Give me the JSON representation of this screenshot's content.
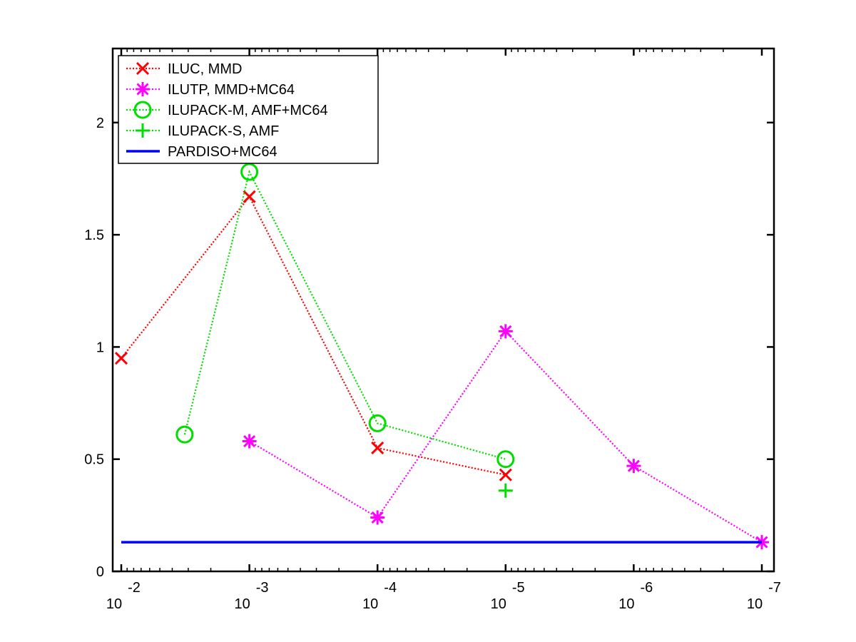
{
  "chart_data": {
    "type": "line",
    "xscale": "log",
    "xlim": [
      0.01,
      1e-07
    ],
    "ylim": [
      0,
      2.33
    ],
    "grid": false,
    "legend_position": "top-left",
    "xticks": [
      {
        "value": 0.01,
        "base": "10",
        "exp": "-2"
      },
      {
        "value": 0.001,
        "base": "10",
        "exp": "-3"
      },
      {
        "value": 0.0001,
        "base": "10",
        "exp": "-4"
      },
      {
        "value": 1e-05,
        "base": "10",
        "exp": "-5"
      },
      {
        "value": 1e-06,
        "base": "10",
        "exp": "-6"
      },
      {
        "value": 1e-07,
        "base": "10",
        "exp": "-7"
      }
    ],
    "yticks": [
      {
        "value": 0,
        "label": "0"
      },
      {
        "value": 0.5,
        "label": "0.5"
      },
      {
        "value": 1,
        "label": "1"
      },
      {
        "value": 1.5,
        "label": "1.5"
      },
      {
        "value": 2,
        "label": "2"
      }
    ],
    "series": [
      {
        "name": "ILUC, MMD",
        "color": "#ff0000",
        "marker": "x",
        "line": "dotted",
        "points": [
          [
            0.01,
            0.95
          ],
          [
            0.001,
            1.67
          ],
          [
            0.0001,
            0.55
          ],
          [
            1e-05,
            0.43
          ]
        ]
      },
      {
        "name": "ILUTP, MMD+MC64",
        "color": "#ff00ff",
        "marker": "star",
        "line": "dotted",
        "points": [
          [
            0.001,
            0.58
          ],
          [
            0.0001,
            0.24
          ],
          [
            1e-05,
            1.07
          ],
          [
            1e-06,
            0.47
          ],
          [
            1e-07,
            0.13
          ]
        ]
      },
      {
        "name": "ILUPACK-M, AMF+MC64",
        "color": "#00dd00",
        "marker": "circle",
        "line": "dotted",
        "points": [
          [
            0.0032,
            0.61
          ],
          [
            0.001,
            1.78
          ],
          [
            0.0001,
            0.66
          ],
          [
            1e-05,
            0.5
          ]
        ]
      },
      {
        "name": "ILUPACK-S, AMF",
        "color": "#00dd00",
        "marker": "plus",
        "line": "dotted",
        "points": [
          [
            1e-05,
            0.36
          ]
        ]
      },
      {
        "name": "PARDISO+MC64",
        "color": "#0000ff",
        "marker": "none",
        "line": "solid",
        "points": [
          [
            0.01,
            0.13
          ],
          [
            1e-07,
            0.13
          ]
        ]
      }
    ]
  }
}
